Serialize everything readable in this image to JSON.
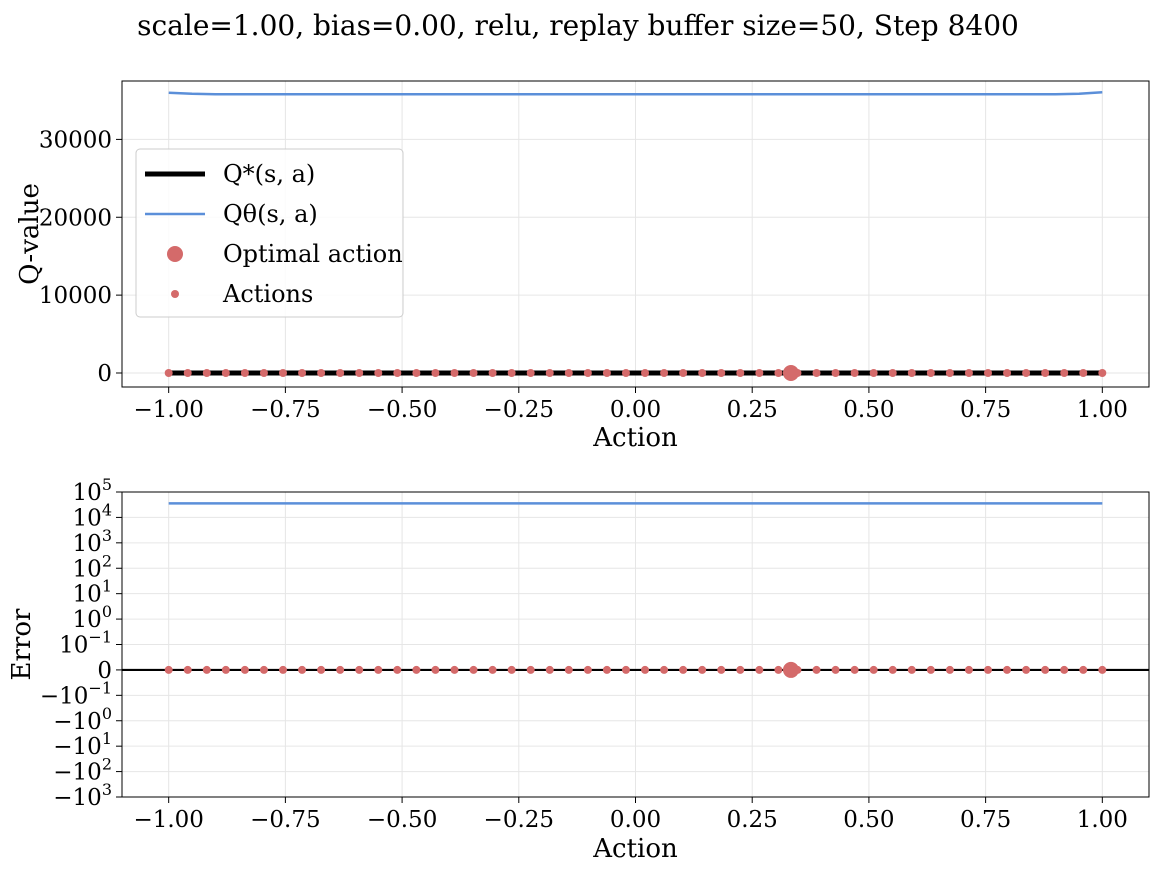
{
  "title": "scale=1.00, bias=0.00, relu, replay buffer size=50, Step 8400",
  "colors": {
    "q_star": "#000000",
    "q_theta": "#5b8fd9",
    "actions": "#d46a6a"
  },
  "chart_data": [
    {
      "type": "line",
      "xlabel": "Action",
      "ylabel": "Q-value",
      "xlim": [
        -1.1,
        1.1
      ],
      "ylim": [
        -1800,
        37500
      ],
      "xticks": [
        -1.0,
        -0.75,
        -0.5,
        -0.25,
        0.0,
        0.25,
        0.5,
        0.75,
        1.0
      ],
      "xtick_labels": [
        "−1.00",
        "−0.75",
        "−0.50",
        "−0.25",
        "0.00",
        "0.25",
        "0.50",
        "0.75",
        "1.00"
      ],
      "yticks": [
        0,
        10000,
        20000,
        30000
      ],
      "ytick_labels": [
        "0",
        "10000",
        "20000",
        "30000"
      ],
      "grid": true,
      "legend_position": "upper-left",
      "legend": [
        {
          "label": "Q*(s, a)",
          "kind": "thick-line",
          "color": "#000000"
        },
        {
          "label": "Qθ(s, a)",
          "kind": "line",
          "color": "#5b8fd9"
        },
        {
          "label": "Optimal action",
          "kind": "big-marker",
          "color": "#d46a6a"
        },
        {
          "label": "Actions",
          "kind": "small-marker",
          "color": "#d46a6a"
        }
      ],
      "series": [
        {
          "name": "Q*(s, a)",
          "x": [
            -1.0,
            1.0
          ],
          "y": [
            0,
            0
          ]
        },
        {
          "name": "Qθ(s, a)",
          "x": [
            -1.0,
            -0.95,
            -0.9,
            -0.5,
            0.0,
            0.5,
            0.9,
            0.95,
            1.0
          ],
          "y": [
            36000,
            35850,
            35800,
            35800,
            35800,
            35800,
            35800,
            35850,
            36050
          ]
        }
      ],
      "optimal_action": {
        "x": 0.333,
        "y": 0
      },
      "actions": {
        "x_start": -1.0,
        "x_end": 1.0,
        "count": 50,
        "y": 0
      }
    },
    {
      "type": "line",
      "xlabel": "Action",
      "ylabel": "Error",
      "yscale": "symlog",
      "linthresh": 0.1,
      "xlim": [
        -1.1,
        1.1
      ],
      "ylim": [
        -1000,
        100000
      ],
      "xticks": [
        -1.0,
        -0.75,
        -0.5,
        -0.25,
        0.0,
        0.25,
        0.5,
        0.75,
        1.0
      ],
      "xtick_labels": [
        "−1.00",
        "−0.75",
        "−0.50",
        "−0.25",
        "0.00",
        "0.25",
        "0.50",
        "0.75",
        "1.00"
      ],
      "yticks": [
        {
          "value": 100000,
          "base": "10",
          "exp": "5"
        },
        {
          "value": 10000,
          "base": "10",
          "exp": "4"
        },
        {
          "value": 1000,
          "base": "10",
          "exp": "3"
        },
        {
          "value": 100,
          "base": "10",
          "exp": "2"
        },
        {
          "value": 10,
          "base": "10",
          "exp": "1"
        },
        {
          "value": 1,
          "base": "10",
          "exp": "0"
        },
        {
          "value": 0.1,
          "base": "10",
          "exp": "−1"
        },
        {
          "value": 0,
          "base": "0",
          "exp": ""
        },
        {
          "value": -0.1,
          "base": "−10",
          "exp": "−1"
        },
        {
          "value": -1,
          "base": "−10",
          "exp": "0"
        },
        {
          "value": -10,
          "base": "−10",
          "exp": "1"
        },
        {
          "value": -100,
          "base": "−10",
          "exp": "2"
        },
        {
          "value": -1000,
          "base": "−10",
          "exp": "3"
        }
      ],
      "grid": true,
      "series": [
        {
          "name": "error",
          "x": [
            -1.0,
            1.0
          ],
          "y": [
            35800,
            35800
          ]
        }
      ],
      "zero_line": true,
      "optimal_action": {
        "x": 0.333,
        "y": 0
      },
      "actions": {
        "x_start": -1.0,
        "x_end": 1.0,
        "count": 50,
        "y": 0
      }
    }
  ]
}
